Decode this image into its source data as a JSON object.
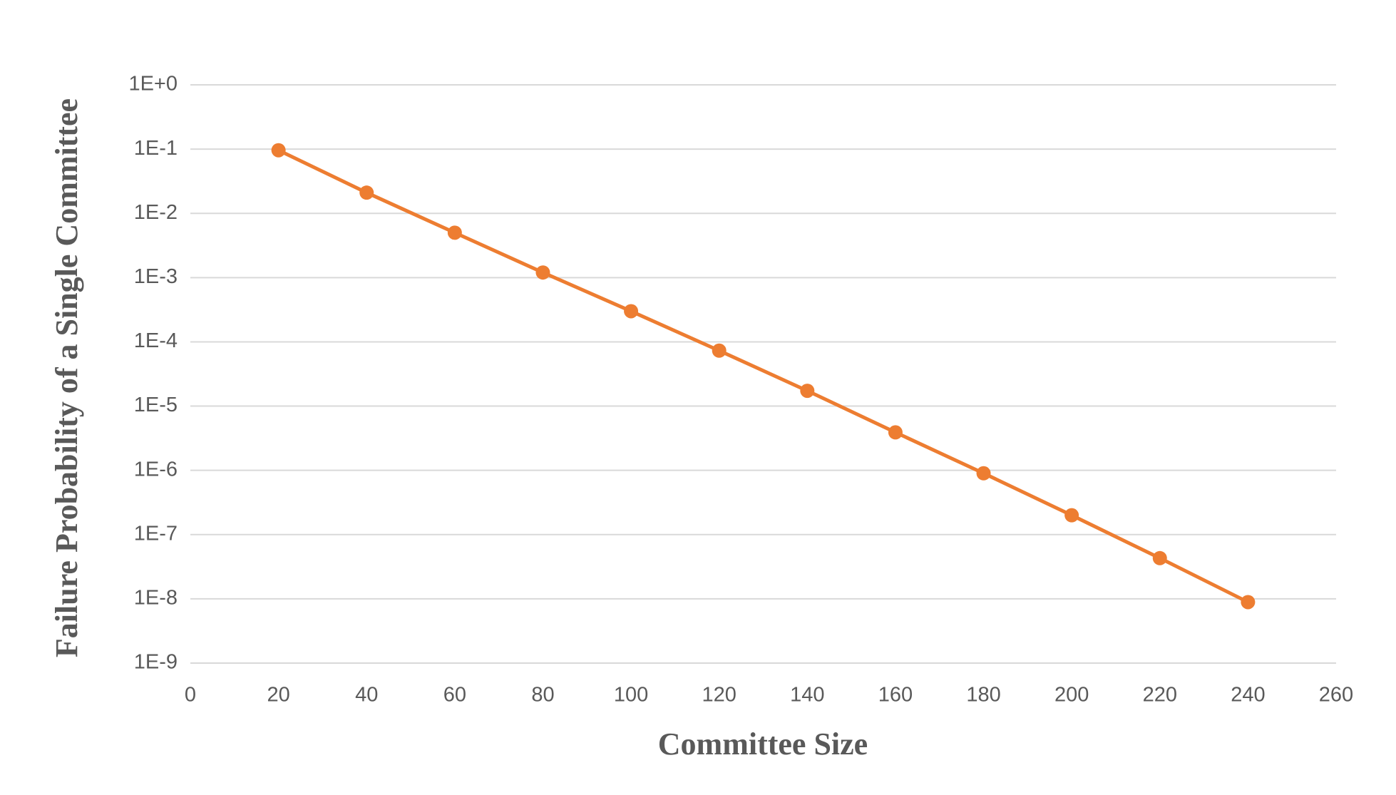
{
  "chart_data": {
    "type": "line",
    "x_label": "Committee Size",
    "y_label": "Failure Probability of a Single Committee",
    "x": [
      20,
      40,
      60,
      80,
      100,
      120,
      140,
      160,
      180,
      200,
      220,
      240
    ],
    "series": [
      {
        "color": "#ed7d31",
        "values": [
          0.096,
          0.021,
          0.005,
          0.0012,
          0.0003,
          7.3e-05,
          1.73e-05,
          3.9e-06,
          9e-07,
          2e-07,
          4.3e-08,
          8.9e-09
        ]
      }
    ],
    "xlim": [
      0,
      260
    ],
    "xticks": [
      0,
      20,
      40,
      60,
      80,
      100,
      120,
      140,
      160,
      180,
      200,
      220,
      240,
      260
    ],
    "ylim": [
      1e-09,
      1
    ],
    "y_log": true,
    "yticks": [
      {
        "value": 1,
        "label": "1E+0"
      },
      {
        "value": 0.1,
        "label": "1E-1"
      },
      {
        "value": 0.01,
        "label": "1E-2"
      },
      {
        "value": 0.001,
        "label": "1E-3"
      },
      {
        "value": 0.0001,
        "label": "1E-4"
      },
      {
        "value": 1e-05,
        "label": "1E-5"
      },
      {
        "value": 1e-06,
        "label": "1E-6"
      },
      {
        "value": 1e-07,
        "label": "1E-7"
      },
      {
        "value": 1e-08,
        "label": "1E-8"
      },
      {
        "value": 1e-09,
        "label": "1E-9"
      }
    ],
    "grid": true
  }
}
